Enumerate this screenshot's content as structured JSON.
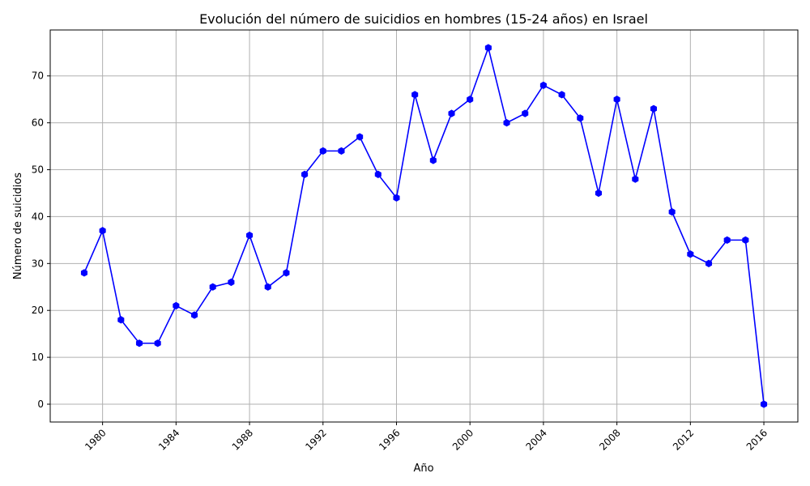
{
  "chart_data": {
    "type": "line",
    "title": "Evolución del número de suicidios en hombres (15-24 años) en Israel",
    "xlabel": "Año",
    "ylabel": "Número de suicidios",
    "x": [
      1979,
      1980,
      1981,
      1982,
      1983,
      1984,
      1985,
      1986,
      1987,
      1988,
      1989,
      1990,
      1991,
      1992,
      1993,
      1994,
      1995,
      1996,
      1997,
      1998,
      1999,
      2000,
      2001,
      2002,
      2003,
      2004,
      2005,
      2006,
      2007,
      2008,
      2009,
      2010,
      2011,
      2012,
      2013,
      2014,
      2015,
      2016
    ],
    "series": [
      {
        "values": [
          28,
          37,
          18,
          13,
          13,
          21,
          19,
          25,
          26,
          36,
          25,
          28,
          49,
          54,
          54,
          57,
          49,
          44,
          66,
          52,
          62,
          65,
          76,
          60,
          62,
          68,
          66,
          61,
          45,
          65,
          48,
          63,
          41,
          32,
          30,
          35,
          35,
          0
        ]
      }
    ],
    "xticks": [
      "1980",
      "1984",
      "1988",
      "1992",
      "1996",
      "2000",
      "2004",
      "2008",
      "2012",
      "2016"
    ],
    "yticks": [
      "0",
      "10",
      "20",
      "30",
      "40",
      "50",
      "60",
      "70"
    ],
    "xlim": [
      1977.15,
      2017.85
    ],
    "ylim": [
      -3.8,
      79.8
    ],
    "grid": true,
    "line_color": "#0000ff",
    "marker": "hexagon",
    "grid_color": "#b0b0b0"
  }
}
